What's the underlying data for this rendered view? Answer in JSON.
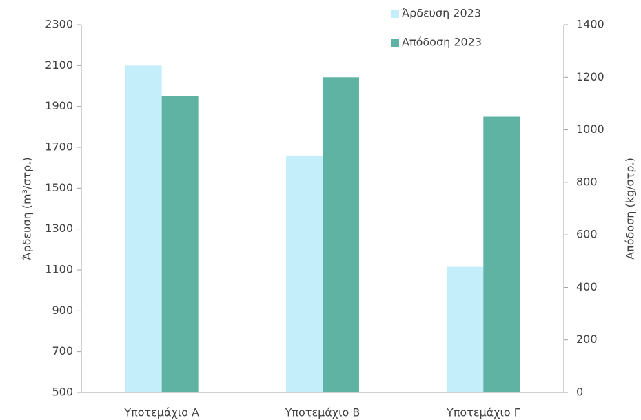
{
  "chart_data": {
    "type": "bar",
    "categories": [
      "Υποτεμάχιο Α",
      "Υποτεμάχιο Β",
      "Υποτεμάχιο Γ"
    ],
    "series": [
      {
        "name": "Άρδευση 2023",
        "color": "#c4eefa",
        "values": [
          2100,
          1660,
          1115
        ]
      },
      {
        "name": "Απόδοση 2023",
        "color": "#5fb3a3",
        "values": [
          1130,
          1200,
          1050
        ],
        "axis": "y2"
      }
    ],
    "ylabel": "Άρδευση (m³/στρ.)",
    "y2label": "Απόδοση (kg/στρ.)",
    "ylim": [
      500,
      2300
    ],
    "yticks": [
      500,
      700,
      900,
      1100,
      1300,
      1500,
      1700,
      1900,
      2100,
      2300
    ],
    "y2lim": [
      0,
      1400
    ],
    "y2ticks": [
      0,
      200,
      400,
      600,
      800,
      1000,
      1200,
      1400
    ],
    "grid": false,
    "legend": "top"
  }
}
